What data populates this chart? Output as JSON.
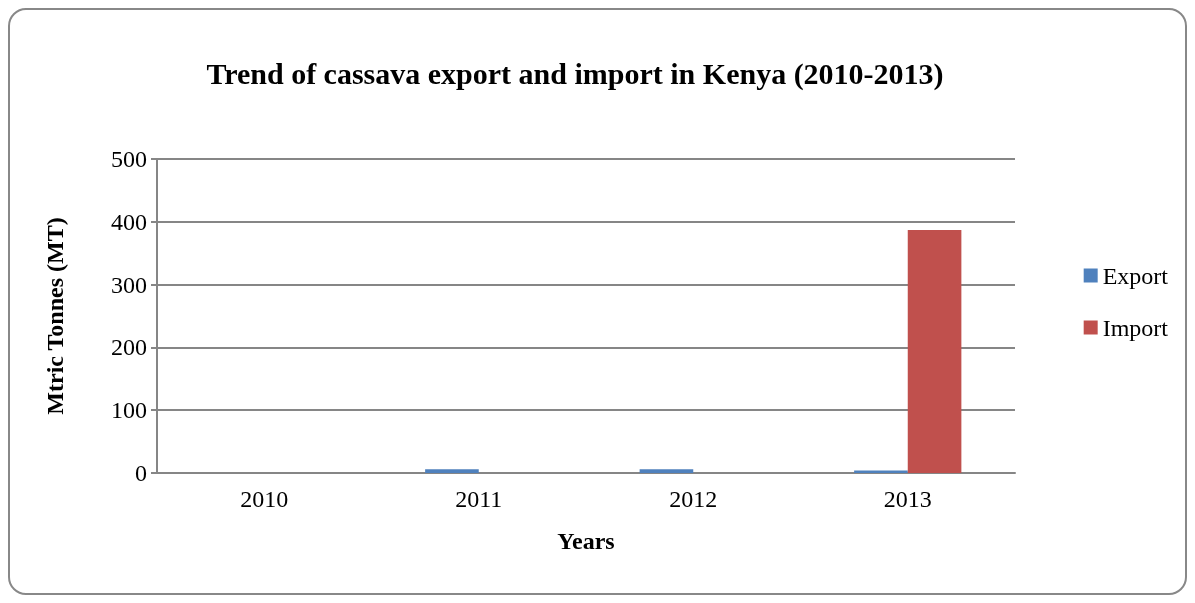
{
  "chart_data": {
    "type": "bar",
    "title": "Trend of cassava export and import in Kenya (2010-2013)",
    "xlabel": "Years",
    "ylabel": "Mtric Tonnes (MT)",
    "categories": [
      "2010",
      "2011",
      "2012",
      "2013"
    ],
    "series": [
      {
        "name": "Export",
        "color": "#4f81bd",
        "values": [
          0,
          6,
          6,
          4
        ]
      },
      {
        "name": "Import",
        "color": "#c0504d",
        "values": [
          0,
          0,
          0,
          387
        ]
      }
    ],
    "ylim": [
      0,
      500
    ],
    "yticks": [
      0,
      100,
      200,
      300,
      400,
      500
    ],
    "grid": "y",
    "legend": "right"
  }
}
